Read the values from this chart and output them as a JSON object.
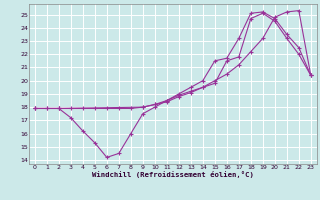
{
  "xlabel": "Windchill (Refroidissement éolien,°C)",
  "bg_color": "#cce9e9",
  "line_color": "#993399",
  "grid_color": "#ffffff",
  "xlim": [
    -0.5,
    23.5
  ],
  "ylim": [
    13.7,
    25.8
  ],
  "yticks": [
    14,
    15,
    16,
    17,
    18,
    19,
    20,
    21,
    22,
    23,
    24,
    25
  ],
  "xticks": [
    0,
    1,
    2,
    3,
    4,
    5,
    6,
    7,
    8,
    9,
    10,
    11,
    12,
    13,
    14,
    15,
    16,
    17,
    18,
    19,
    20,
    21,
    22,
    23
  ],
  "line1_x": [
    0,
    1,
    2,
    3,
    4,
    5,
    6,
    7,
    8,
    9,
    10,
    11,
    12,
    13,
    14,
    15,
    16,
    17,
    18,
    19,
    20,
    21,
    22,
    23
  ],
  "line1_y": [
    17.9,
    17.9,
    17.9,
    17.2,
    16.2,
    15.3,
    14.2,
    14.5,
    16.0,
    17.5,
    18.0,
    18.5,
    19.0,
    19.5,
    20.0,
    21.5,
    21.7,
    23.2,
    25.1,
    25.2,
    24.7,
    23.5,
    22.5,
    20.4
  ],
  "line2_x": [
    0,
    1,
    2,
    3,
    4,
    5,
    6,
    7,
    8,
    9,
    10,
    11,
    12,
    13,
    14,
    15,
    16,
    17,
    18,
    19,
    20,
    21,
    22,
    23
  ],
  "line2_y": [
    17.9,
    17.9,
    17.9,
    17.9,
    17.9,
    17.9,
    17.9,
    17.9,
    17.9,
    18.0,
    18.2,
    18.4,
    18.8,
    19.1,
    19.5,
    20.0,
    20.5,
    21.2,
    22.2,
    23.2,
    24.8,
    25.2,
    25.3,
    20.4
  ],
  "line3_x": [
    0,
    2,
    9,
    10,
    11,
    12,
    13,
    14,
    15,
    16,
    17,
    18,
    19,
    20,
    21,
    22,
    23
  ],
  "line3_y": [
    17.9,
    17.9,
    18.0,
    18.2,
    18.5,
    18.9,
    19.2,
    19.5,
    19.8,
    21.5,
    21.8,
    24.7,
    25.1,
    24.5,
    23.2,
    22.0,
    20.4
  ]
}
